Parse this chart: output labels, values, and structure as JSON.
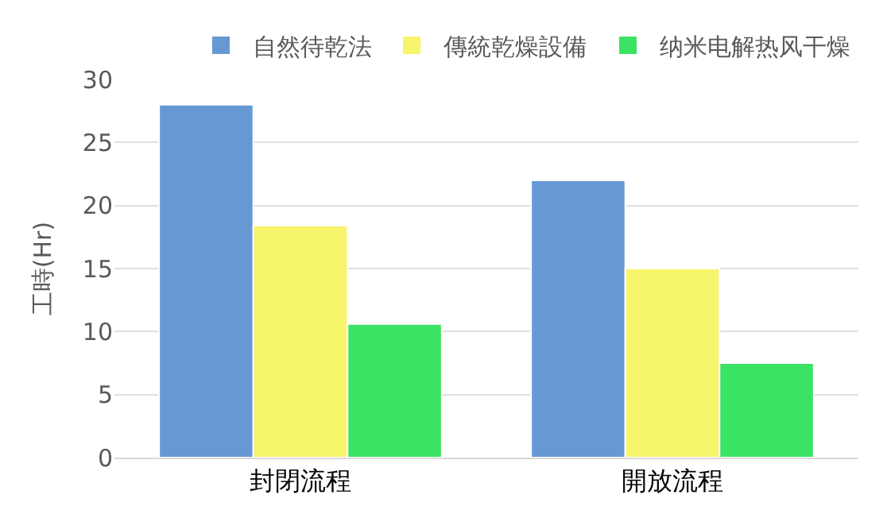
{
  "chart_data": {
    "type": "bar",
    "ylabel": "工時(Hr)",
    "categories": [
      "封閉流程",
      "開放流程"
    ],
    "series": [
      {
        "name": "自然待乾法",
        "color": "#6699d4",
        "values": [
          28,
          22
        ]
      },
      {
        "name": "傳統乾燥設備",
        "color": "#f7f56b",
        "values": [
          18.4,
          15
        ]
      },
      {
        "name": "纳米电解热风干燥",
        "color": "#3be365",
        "values": [
          10.6,
          7.5
        ]
      }
    ],
    "ylim": [
      0,
      30
    ],
    "yticks": [
      0,
      5,
      10,
      15,
      20,
      25,
      30
    ],
    "grid": "y",
    "legend": "top"
  }
}
